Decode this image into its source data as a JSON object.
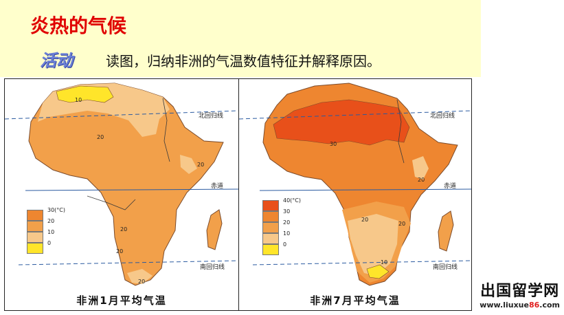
{
  "title": "炎热的气候",
  "activity_badge": "活动",
  "instruction": "读图，归纳非洲的气温数值特征并解释原因。",
  "colors": {
    "level_0_10": "#ffe52a",
    "level_10_20": "#f7c88a",
    "level_20_30": "#f2a04a",
    "level_30_40": "#ee8630",
    "level_40": "#e8501a",
    "latitude_line": "#2a5aa0"
  },
  "maps": [
    {
      "caption": "非洲1月平均气温",
      "tropic_north_label": "北回归线",
      "equator_label": "赤道",
      "tropic_south_label": "南回归线",
      "legend": {
        "levels": [
          "30(°C)",
          "20",
          "10",
          "0"
        ]
      },
      "isotherm_labels": [
        "10",
        "20",
        "20",
        "20",
        "20",
        "20"
      ]
    },
    {
      "caption": "非洲7月平均气温",
      "tropic_north_label": "北回归线",
      "equator_label": "赤道",
      "tropic_south_label": "南回归线",
      "legend": {
        "levels": [
          "40(°C)",
          "30",
          "20",
          "10",
          "0"
        ]
      },
      "isotherm_labels": [
        "30",
        "20",
        "20",
        "20",
        "10"
      ]
    }
  ],
  "watermark": {
    "main": "出国留学网",
    "url_prefix": "www.liuxue",
    "url_number": "86",
    "url_suffix": ".com"
  }
}
